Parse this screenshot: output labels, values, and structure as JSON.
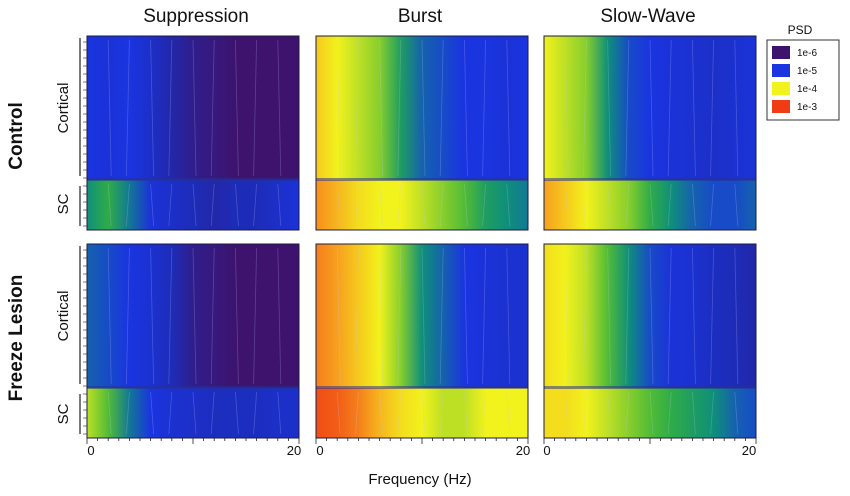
{
  "chart_data": {
    "type": "heatmap",
    "layout": "2x3 grid of contour spectrograms",
    "columns": [
      "Suppression",
      "Burst",
      "Slow-Wave"
    ],
    "rows": [
      "Control",
      "Freeze Lesion"
    ],
    "regions": [
      "Cortical",
      "SC"
    ],
    "xlabel": "Frequency (Hz)",
    "xlim": [
      0,
      20
    ],
    "x_ticks": [
      "0",
      "20"
    ],
    "colorbar": {
      "title": "PSD",
      "scale": "log",
      "entries": [
        {
          "label": "1e-6",
          "color": "#3d136e"
        },
        {
          "label": "1e-5",
          "color": "#1a34e0"
        },
        {
          "label": "1e-4",
          "color": "#f2f21c"
        },
        {
          "label": "1e-3",
          "color": "#f03c14"
        }
      ]
    },
    "value_columns": [
      0,
      2,
      4,
      6,
      8,
      10,
      12,
      14,
      16,
      18,
      20
    ],
    "panels": [
      {
        "row": "Control",
        "column": "Suppression",
        "cortical_log10_psd": [
          -5.0,
          -5.1,
          -5.0,
          -5.3,
          -5.6,
          -5.8,
          -5.9,
          -6.0,
          -6.0,
          -6.0,
          -6.0
        ],
        "sc_log10_psd": [
          -4.6,
          -4.4,
          -4.7,
          -5.1,
          -5.3,
          -5.5,
          -5.6,
          -5.5,
          -5.5,
          -5.3,
          -5.1
        ]
      },
      {
        "row": "Control",
        "column": "Burst",
        "cortical_log10_psd": [
          -3.8,
          -4.0,
          -4.1,
          -4.2,
          -4.5,
          -4.8,
          -4.9,
          -5.0,
          -5.0,
          -5.1,
          -5.0
        ],
        "sc_log10_psd": [
          -3.5,
          -3.7,
          -3.9,
          -4.0,
          -4.0,
          -4.1,
          -4.2,
          -4.3,
          -4.5,
          -4.6,
          -4.7
        ]
      },
      {
        "row": "Control",
        "column": "Slow-Wave",
        "cortical_log10_psd": [
          -4.0,
          -4.1,
          -4.2,
          -4.6,
          -4.9,
          -5.0,
          -5.1,
          -5.2,
          -5.3,
          -5.2,
          -5.1
        ],
        "sc_log10_psd": [
          -3.6,
          -3.8,
          -4.0,
          -4.1,
          -4.2,
          -4.4,
          -4.6,
          -4.8,
          -4.9,
          -4.9,
          -4.8
        ]
      },
      {
        "row": "Freeze Lesion",
        "column": "Suppression",
        "cortical_log10_psd": [
          -4.8,
          -4.9,
          -5.0,
          -5.2,
          -5.5,
          -5.8,
          -5.9,
          -6.0,
          -6.0,
          -6.0,
          -6.0
        ],
        "sc_log10_psd": [
          -4.1,
          -4.3,
          -4.7,
          -5.0,
          -5.2,
          -5.3,
          -5.4,
          -5.4,
          -5.4,
          -5.3,
          -5.3
        ]
      },
      {
        "row": "Freeze Lesion",
        "column": "Burst",
        "cortical_log10_psd": [
          -3.4,
          -3.6,
          -3.8,
          -4.0,
          -4.2,
          -4.6,
          -4.8,
          -5.0,
          -5.1,
          -5.2,
          -5.2
        ],
        "sc_log10_psd": [
          -3.1,
          -3.2,
          -3.4,
          -3.7,
          -3.9,
          -4.0,
          -4.1,
          -4.1,
          -4.0,
          -4.0,
          -4.0
        ]
      },
      {
        "row": "Freeze Lesion",
        "column": "Slow-Wave",
        "cortical_log10_psd": [
          -3.9,
          -4.0,
          -4.1,
          -4.3,
          -4.6,
          -4.9,
          -5.1,
          -5.2,
          -5.4,
          -5.5,
          -5.6
        ],
        "sc_log10_psd": [
          -3.9,
          -3.9,
          -4.0,
          -4.1,
          -4.2,
          -4.3,
          -4.4,
          -4.5,
          -4.6,
          -4.8,
          -4.9
        ]
      }
    ]
  }
}
